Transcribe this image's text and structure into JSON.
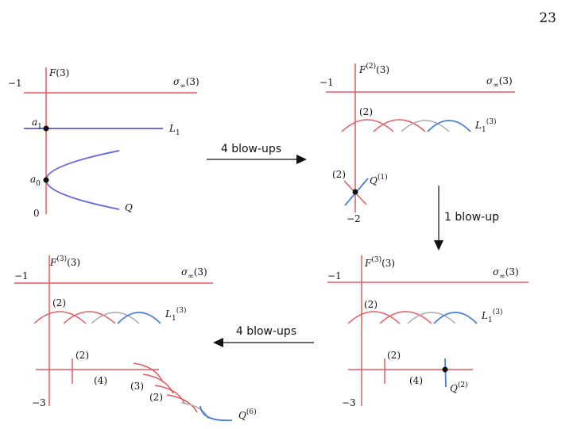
{
  "page_number": "23",
  "panels": [
    {
      "labels": [
        {
          "main": "−1"
        },
        {
          "main": "F",
          "tail": "(3)"
        },
        {
          "main": "σ",
          "sub": "∞",
          "tail": "(3)"
        },
        {
          "main": "a",
          "sub": "1"
        },
        {
          "main": "L",
          "sub": "1"
        },
        {
          "main": "a",
          "sub": "0"
        },
        {
          "main": "0"
        },
        {
          "main": "Q"
        }
      ]
    },
    {
      "labels": [
        {
          "main": "−1"
        },
        {
          "main": "F",
          "sup": "(2)",
          "tail": "(3)"
        },
        {
          "main": "σ",
          "sub": "∞",
          "tail": "(3)"
        },
        {
          "main": "(2)"
        },
        {
          "main": "L",
          "sub": "1",
          "sup": "(3)"
        },
        {
          "main": "(2)"
        },
        {
          "main": "Q",
          "sup": "(1)"
        },
        {
          "main": "−2"
        }
      ]
    },
    {
      "labels": [
        {
          "main": "−1"
        },
        {
          "main": "F",
          "sup": "(3)",
          "tail": "(3)"
        },
        {
          "main": "σ",
          "sub": "∞",
          "tail": "(3)"
        },
        {
          "main": "(2)"
        },
        {
          "main": "L",
          "sub": "1",
          "sup": "(3)"
        },
        {
          "main": "(2)"
        },
        {
          "main": "(4)"
        },
        {
          "main": "Q",
          "sup": "(2)"
        },
        {
          "main": "−3"
        }
      ]
    },
    {
      "labels": [
        {
          "main": "−1"
        },
        {
          "main": "F",
          "sup": "(3)",
          "tail": "(3)"
        },
        {
          "main": "σ",
          "sub": "∞",
          "tail": "(3)"
        },
        {
          "main": "(2)"
        },
        {
          "main": "L",
          "sub": "1",
          "sup": "(3)"
        },
        {
          "main": "(2)"
        },
        {
          "main": "(4)"
        },
        {
          "main": "(3)"
        },
        {
          "main": "(2)"
        },
        {
          "main": "−3"
        },
        {
          "main": "Q",
          "sup": "(6)"
        }
      ]
    }
  ],
  "arrows": [
    "4 blow-ups",
    "1 blow-up",
    "4 blow-ups"
  ]
}
